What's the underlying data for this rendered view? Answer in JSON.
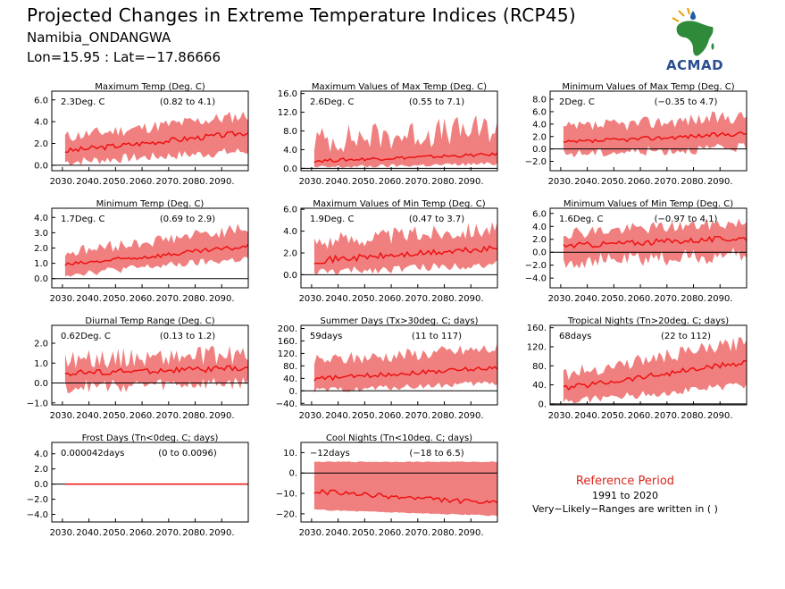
{
  "header": {
    "title": "Projected Changes in Extreme Temperature Indices (RCP45)",
    "location": "Namibia_ONDANGWA",
    "coords": "Lon=15.95 : Lat=−17.86666"
  },
  "logo": {
    "text": "ACMAD",
    "icon": "acmad-africa-logo-icon"
  },
  "reference": {
    "title": "Reference Period",
    "years": "1991 to 2020",
    "note": "Very−Likely−Ranges are written in ( )"
  },
  "colors": {
    "band": "#f08080",
    "median": "#ee1111",
    "zero_line": "#000000"
  },
  "chart_data": [
    {
      "type": "area",
      "title": "Maximum Temp (Deg. C)",
      "summary": "2.3Deg. C",
      "range": "(0.82 to 4.1)",
      "x_ticks": [
        "2030.",
        "2040.",
        "2050.",
        "2060.",
        "2070.",
        "2080.",
        "2090."
      ],
      "xlim": [
        2026,
        2100
      ],
      "ylim": [
        -0.5,
        6.8
      ],
      "y_ticks": [
        {
          "v": 6,
          "label": "6.0"
        },
        {
          "v": 4,
          "label": "4.0"
        },
        {
          "v": 2,
          "label": "2.0"
        },
        {
          "v": 0,
          "label": "0.0"
        }
      ],
      "series": [
        {
          "name": "median",
          "start": 1.3,
          "end": 3.0,
          "noise": 0.25
        },
        {
          "name": "lower",
          "start": 0.3,
          "end": 1.3,
          "noise": 0.45
        },
        {
          "name": "upper",
          "start": 2.6,
          "end": 4.6,
          "noise": 0.6
        }
      ]
    },
    {
      "type": "area",
      "title": "Maximum Values of Max Temp (Deg. C)",
      "summary": "2.6Deg. C",
      "range": "(0.55 to 7.1)",
      "x_ticks": [
        "2030.",
        "2040.",
        "2050.",
        "2060.",
        "2070.",
        "2080.",
        "2090."
      ],
      "xlim": [
        2026,
        2100
      ],
      "ylim": [
        -0.5,
        16.5
      ],
      "y_ticks": [
        {
          "v": 16,
          "label": "16.0"
        },
        {
          "v": 12,
          "label": "12.0"
        },
        {
          "v": 8,
          "label": "8.0"
        },
        {
          "v": 4,
          "label": "4.0"
        },
        {
          "v": 0,
          "label": "0.0"
        }
      ],
      "series": [
        {
          "name": "median",
          "start": 1.6,
          "end": 3.0,
          "noise": 0.35
        },
        {
          "name": "lower",
          "start": 0.2,
          "end": 1.0,
          "noise": 0.4
        },
        {
          "name": "upper",
          "start": 6.0,
          "end": 8.5,
          "noise": 3.2
        }
      ]
    },
    {
      "type": "area",
      "title": "Minimum Values of Max Temp (Deg. C)",
      "summary": "2Deg. C",
      "range": "(−0.35 to 4.7)",
      "x_ticks": [
        "2030.",
        "2040.",
        "2050.",
        "2060.",
        "2070.",
        "2080.",
        "2090."
      ],
      "xlim": [
        2026,
        2100
      ],
      "ylim": [
        -3.5,
        9.3
      ],
      "y_ticks": [
        {
          "v": 8,
          "label": "8.0"
        },
        {
          "v": 6,
          "label": "6.0"
        },
        {
          "v": 4,
          "label": "4.0"
        },
        {
          "v": 2,
          "label": "2.0"
        },
        {
          "v": 0,
          "label": "0.0"
        },
        {
          "v": -2,
          "label": "−2.0"
        }
      ],
      "series": [
        {
          "name": "median",
          "start": 1.0,
          "end": 2.5,
          "noise": 0.35
        },
        {
          "name": "lower",
          "start": -0.8,
          "end": 0.2,
          "noise": 0.8
        },
        {
          "name": "upper",
          "start": 3.3,
          "end": 5.3,
          "noise": 1.1
        }
      ]
    },
    {
      "type": "area",
      "title": "Minimum Temp (Deg. C)",
      "summary": "1.7Deg. C",
      "range": "(0.69 to 2.9)",
      "x_ticks": [
        "2030.",
        "2040.",
        "2050.",
        "2060.",
        "2070.",
        "2080.",
        "2090."
      ],
      "xlim": [
        2026,
        2100
      ],
      "ylim": [
        -0.6,
        4.6
      ],
      "y_ticks": [
        {
          "v": 4,
          "label": "4.0"
        },
        {
          "v": 3,
          "label": "3.0"
        },
        {
          "v": 2,
          "label": "2.0"
        },
        {
          "v": 1,
          "label": "1.0"
        },
        {
          "v": 0,
          "label": "0.0"
        }
      ],
      "series": [
        {
          "name": "median",
          "start": 0.9,
          "end": 2.1,
          "noise": 0.15
        },
        {
          "name": "lower",
          "start": 0.3,
          "end": 1.3,
          "noise": 0.25
        },
        {
          "name": "upper",
          "start": 1.7,
          "end": 3.3,
          "noise": 0.4
        }
      ]
    },
    {
      "type": "area",
      "title": "Maximum Values of Min Temp (Deg. C)",
      "summary": "1.9Deg. C",
      "range": "(0.47 to 3.7)",
      "x_ticks": [
        "2030.",
        "2040.",
        "2050.",
        "2060.",
        "2070.",
        "2080.",
        "2090."
      ],
      "xlim": [
        2026,
        2100
      ],
      "ylim": [
        -1.2,
        6.1
      ],
      "y_ticks": [
        {
          "v": 6,
          "label": "6.0"
        },
        {
          "v": 4,
          "label": "4.0"
        },
        {
          "v": 2,
          "label": "2.0"
        },
        {
          "v": 0,
          "label": "0.0"
        }
      ],
      "series": [
        {
          "name": "median",
          "start": 1.3,
          "end": 2.4,
          "noise": 0.3
        },
        {
          "name": "lower",
          "start": 0.2,
          "end": 1.0,
          "noise": 0.4
        },
        {
          "name": "upper",
          "start": 3.0,
          "end": 4.3,
          "noise": 0.8
        }
      ]
    },
    {
      "type": "area",
      "title": "Minimum Values of Min Temp (Deg. C)",
      "summary": "1.6Deg. C",
      "range": "(−0.97 to 4.1)",
      "x_ticks": [
        "2030.",
        "2040.",
        "2050.",
        "2060.",
        "2070.",
        "2080.",
        "2090."
      ],
      "xlim": [
        2026,
        2100
      ],
      "ylim": [
        -5.5,
        6.8
      ],
      "y_ticks": [
        {
          "v": 6,
          "label": "6.0"
        },
        {
          "v": 4,
          "label": "4.0"
        },
        {
          "v": 2,
          "label": "2.0"
        },
        {
          "v": 0,
          "label": "0.0"
        },
        {
          "v": -2,
          "label": "−2.0"
        },
        {
          "v": -4,
          "label": "−4.0"
        }
      ],
      "series": [
        {
          "name": "median",
          "start": 1.0,
          "end": 2.2,
          "noise": 0.45
        },
        {
          "name": "lower",
          "start": -1.5,
          "end": -0.5,
          "noise": 1.3
        },
        {
          "name": "upper",
          "start": 3.0,
          "end": 4.6,
          "noise": 1.0
        }
      ]
    },
    {
      "type": "area",
      "title": "Diurnal Temp Range (Deg. C)",
      "summary": "0.62Deg. C",
      "range": "(0.13 to 1.2)",
      "x_ticks": [
        "2030.",
        "2040.",
        "2050.",
        "2060.",
        "2070.",
        "2080.",
        "2090."
      ],
      "xlim": [
        2026,
        2100
      ],
      "ylim": [
        -1.1,
        2.9
      ],
      "y_ticks": [
        {
          "v": 2,
          "label": "2.0"
        },
        {
          "v": 1,
          "label": "1.0"
        },
        {
          "v": 0,
          "label": "0.0"
        },
        {
          "v": -1,
          "label": "−1.0"
        }
      ],
      "series": [
        {
          "name": "median",
          "start": 0.5,
          "end": 0.75,
          "noise": 0.15
        },
        {
          "name": "lower",
          "start": -0.2,
          "end": 0.0,
          "noise": 0.35
        },
        {
          "name": "upper",
          "start": 1.2,
          "end": 1.4,
          "noise": 0.5
        }
      ]
    },
    {
      "type": "area",
      "title": "Summer Days (Tx>30deg. C; days)",
      "summary": "59days",
      "range": "(11 to 117)",
      "x_ticks": [
        "2030.",
        "2040.",
        "2050.",
        "2060.",
        "2070.",
        "2080.",
        "2090."
      ],
      "xlim": [
        2026,
        2100
      ],
      "ylim": [
        -45,
        210
      ],
      "y_ticks": [
        {
          "v": 200,
          "label": "200."
        },
        {
          "v": 160,
          "label": "160."
        },
        {
          "v": 120,
          "label": "120."
        },
        {
          "v": 80,
          "label": "80."
        },
        {
          "v": 40,
          "label": "40."
        },
        {
          "v": 0,
          "label": "0."
        },
        {
          "v": -40,
          "label": "−40."
        }
      ],
      "series": [
        {
          "name": "median",
          "start": 38,
          "end": 75,
          "noise": 7
        },
        {
          "name": "lower",
          "start": 0,
          "end": 25,
          "noise": 10
        },
        {
          "name": "upper",
          "start": 95,
          "end": 135,
          "noise": 22
        }
      ]
    },
    {
      "type": "area",
      "title": "Tropical Nights (Tn>20deg. C; days)",
      "summary": "68days",
      "range": "(22 to 112)",
      "x_ticks": [
        "2030.",
        "2040.",
        "2050.",
        "2060.",
        "2070.",
        "2080.",
        "2090."
      ],
      "xlim": [
        2026,
        2100
      ],
      "ylim": [
        -2,
        165
      ],
      "y_ticks": [
        {
          "v": 160,
          "label": "160."
        },
        {
          "v": 120,
          "label": "120."
        },
        {
          "v": 80,
          "label": "80."
        },
        {
          "v": 40,
          "label": "40."
        },
        {
          "v": 0,
          "label": "0."
        }
      ],
      "series": [
        {
          "name": "median",
          "start": 33,
          "end": 88,
          "noise": 6
        },
        {
          "name": "lower",
          "start": 5,
          "end": 40,
          "noise": 8
        },
        {
          "name": "upper",
          "start": 62,
          "end": 130,
          "noise": 15
        }
      ]
    },
    {
      "type": "area",
      "title": "Frost Days (Tn<0deg. C; days)",
      "summary": "0.000042days",
      "range": "(0 to 0.0096)",
      "x_ticks": [
        "2030.",
        "2040.",
        "2050.",
        "2060.",
        "2070.",
        "2080.",
        "2090."
      ],
      "xlim": [
        2026,
        2100
      ],
      "ylim": [
        -5,
        5.5
      ],
      "y_ticks": [
        {
          "v": 4,
          "label": "4.0"
        },
        {
          "v": 2,
          "label": "2.0"
        },
        {
          "v": 0,
          "label": "0.0"
        },
        {
          "v": -2,
          "label": "−2.0"
        },
        {
          "v": -4,
          "label": "−4.0"
        }
      ],
      "series": [
        {
          "name": "median",
          "start": 0,
          "end": 0,
          "noise": 0
        },
        {
          "name": "lower",
          "start": 0,
          "end": 0,
          "noise": 0
        },
        {
          "name": "upper",
          "start": 0.05,
          "end": 0.05,
          "noise": 0.02
        }
      ]
    },
    {
      "type": "area",
      "title": "Cool Nights (Tn<10deg. C; days)",
      "summary": "−12days",
      "range": "(−18 to 6.5)",
      "x_ticks": [
        "2030.",
        "2040.",
        "2050.",
        "2060.",
        "2070.",
        "2080.",
        "2090."
      ],
      "xlim": [
        2026,
        2100
      ],
      "ylim": [
        -24,
        15
      ],
      "y_ticks": [
        {
          "v": 10,
          "label": "10."
        },
        {
          "v": 0,
          "label": "0."
        },
        {
          "v": -10,
          "label": "−10."
        },
        {
          "v": -20,
          "label": "−20."
        }
      ],
      "series": [
        {
          "name": "median",
          "start": -9,
          "end": -15,
          "noise": 1.2
        },
        {
          "name": "lower",
          "start": -18,
          "end": -21,
          "noise": 0.3
        },
        {
          "name": "upper",
          "start": 5.5,
          "end": 5.5,
          "noise": 0.2
        }
      ]
    }
  ]
}
